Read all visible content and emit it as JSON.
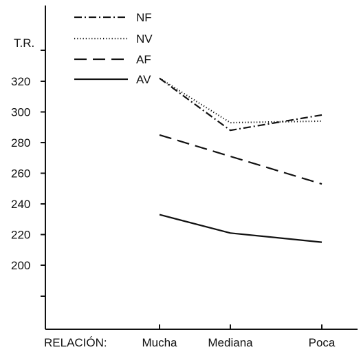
{
  "chart_data": {
    "type": "line",
    "ylabel": "T.R.",
    "xlabel_prefix": "RELACIÓN:",
    "categories": [
      "Mucha",
      "Mediana",
      "Poca"
    ],
    "y_ticks": [
      200,
      220,
      240,
      260,
      280,
      300,
      320
    ],
    "ylim": [
      160,
      350
    ],
    "grid": false,
    "legend_position": "top-left",
    "series": [
      {
        "name": "NF",
        "style": "dash-dot",
        "values": [
          322,
          288,
          298
        ]
      },
      {
        "name": "NV",
        "style": "dotted",
        "values": [
          322,
          293,
          294
        ]
      },
      {
        "name": "AF",
        "style": "long-dash",
        "values": [
          285,
          271,
          253
        ]
      },
      {
        "name": "AV",
        "style": "solid",
        "values": [
          233,
          221,
          215
        ]
      }
    ]
  }
}
